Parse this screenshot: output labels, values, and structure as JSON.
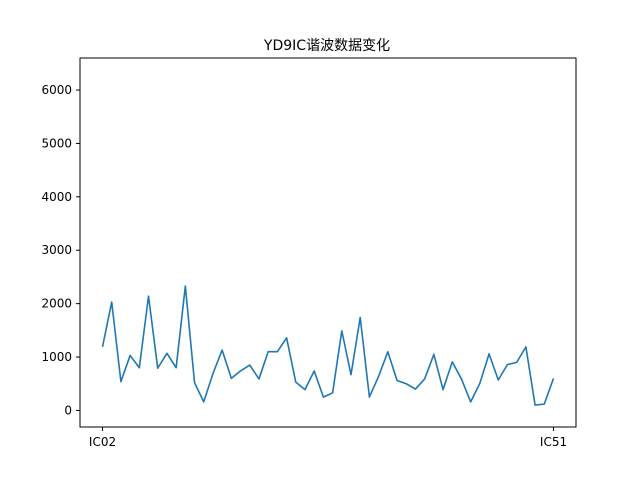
{
  "chart_data": {
    "type": "line",
    "title": "YD9IC谐波数据变化",
    "xlabel": "",
    "ylabel": "",
    "x_tick_labels": [
      "IC02",
      "IC51"
    ],
    "y_ticks": [
      0,
      1000,
      2000,
      3000,
      4000,
      5000,
      6000
    ],
    "ylim": [
      -310,
      6600
    ],
    "grid": false,
    "line_color": "#1f77b4",
    "series": [
      {
        "values": [
          1190,
          2030,
          540,
          1030,
          800,
          2140,
          790,
          1070,
          800,
          2330,
          520,
          160,
          690,
          1130,
          600,
          740,
          850,
          590,
          1100,
          1100,
          1360,
          530,
          390,
          740,
          250,
          330,
          1490,
          670,
          1740,
          250,
          640,
          1100,
          560,
          500,
          400,
          590,
          1050,
          390,
          910,
          590,
          160,
          510,
          1060,
          570,
          860,
          900,
          1190,
          100,
          120,
          600
        ]
      }
    ]
  }
}
